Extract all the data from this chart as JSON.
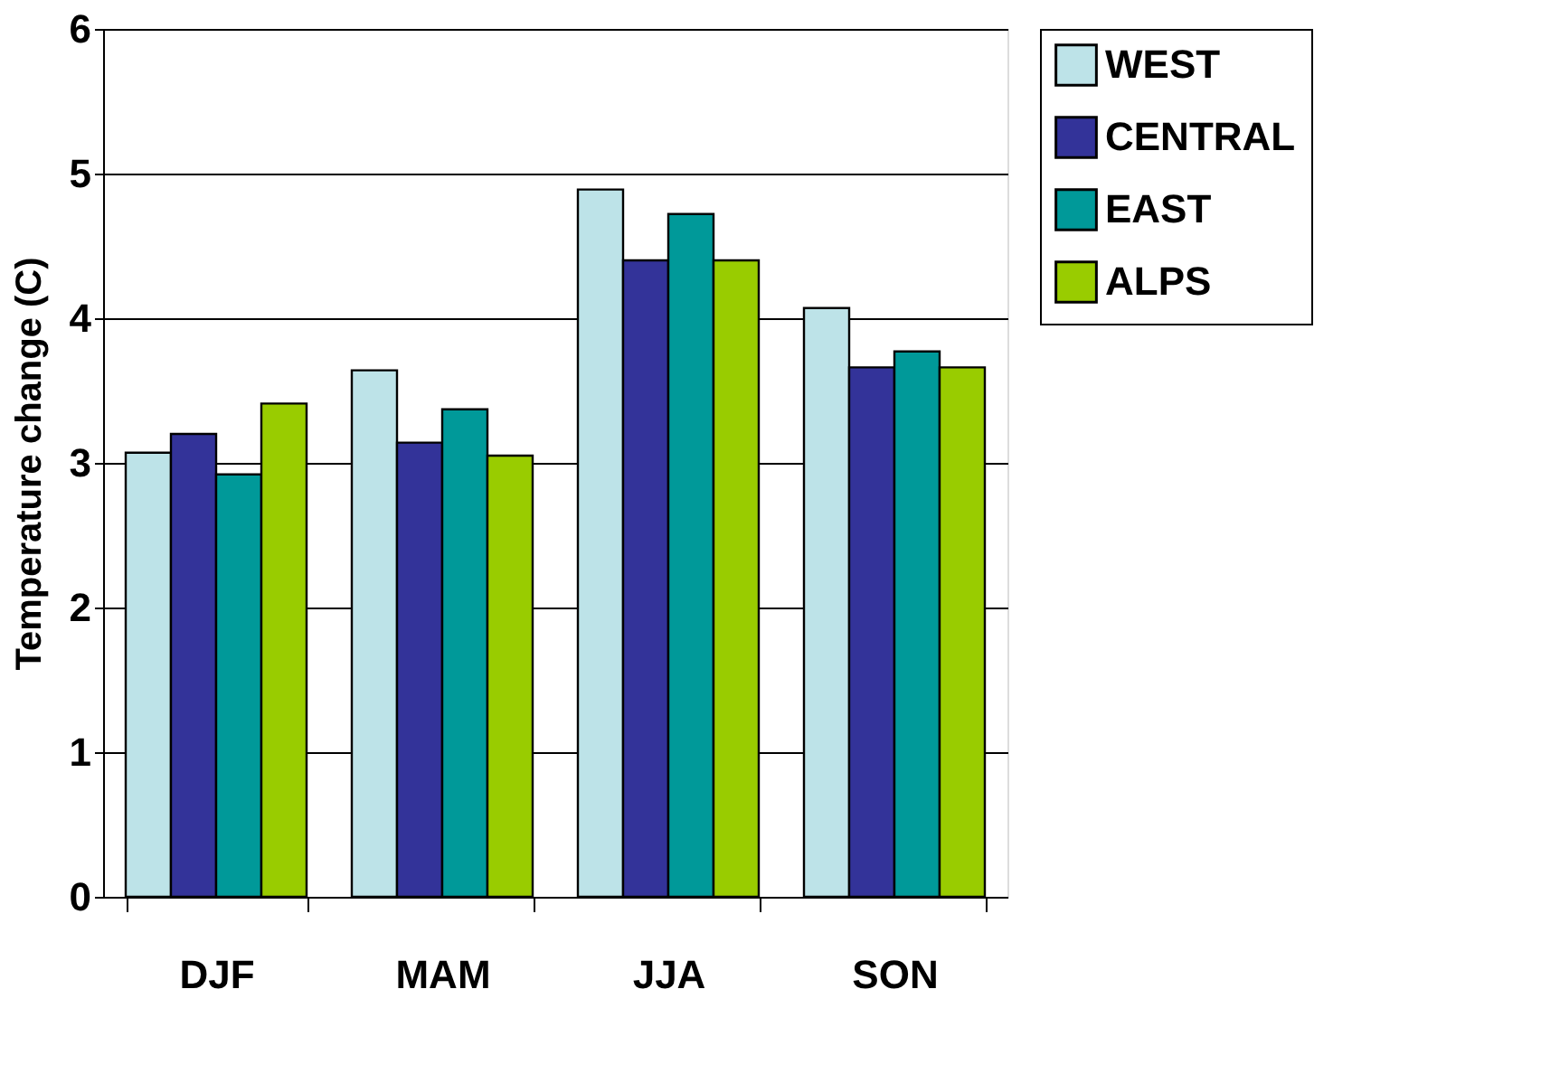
{
  "chart_data": {
    "type": "bar",
    "ylabel": "Temperature change (C)",
    "categories": [
      "DJF",
      "MAM",
      "JJA",
      "SON"
    ],
    "series": [
      {
        "name": "WEST",
        "color": "#bde3e8",
        "values": [
          3.07,
          3.64,
          4.89,
          4.07
        ]
      },
      {
        "name": "CENTRAL",
        "color": "#333399",
        "values": [
          3.2,
          3.14,
          4.4,
          3.66
        ]
      },
      {
        "name": "EAST",
        "color": "#009999",
        "values": [
          2.92,
          3.37,
          4.72,
          3.77
        ]
      },
      {
        "name": "ALPS",
        "color": "#99cc00",
        "values": [
          3.41,
          3.05,
          4.4,
          3.66
        ]
      }
    ],
    "ylim": [
      0,
      6
    ],
    "yticks": [
      0,
      1,
      2,
      3,
      4,
      5,
      6
    ],
    "grid": "y",
    "legend": "right"
  }
}
